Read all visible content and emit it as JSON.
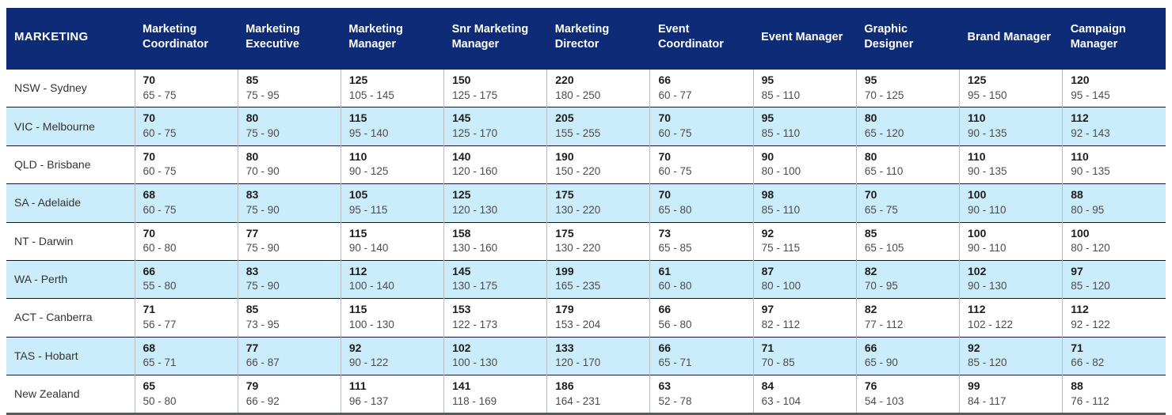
{
  "style": {
    "header_bg": "#0d2b76",
    "header_text": "#ffffff",
    "stripe_bg": "#cbecfa",
    "row_separator": "#15153c",
    "bottom_border": "#595a5c"
  },
  "chart_data": {
    "type": "table",
    "title": "MARKETING",
    "columns": [
      "Marketing Coordinator",
      "Marketing Executive",
      "Marketing Manager",
      "Snr Marketing Manager",
      "Marketing Director",
      "Event Coordinator",
      "Event Manager",
      "Graphic Designer",
      "Brand Manager",
      "Campaign Manager"
    ],
    "rows": [
      {
        "region": "NSW - Sydney",
        "cells": [
          {
            "value": "70",
            "range": "65 - 75"
          },
          {
            "value": "85",
            "range": "75 - 95"
          },
          {
            "value": "125",
            "range": "105 - 145"
          },
          {
            "value": "150",
            "range": "125 - 175"
          },
          {
            "value": "220",
            "range": "180 - 250"
          },
          {
            "value": "66",
            "range": "60 - 77"
          },
          {
            "value": "95",
            "range": "85 - 110"
          },
          {
            "value": "95",
            "range": "70 - 125"
          },
          {
            "value": "125",
            "range": "95 - 150"
          },
          {
            "value": "120",
            "range": "95 - 145"
          }
        ]
      },
      {
        "region": "VIC - Melbourne",
        "cells": [
          {
            "value": "70",
            "range": "60 - 75"
          },
          {
            "value": "80",
            "range": "75 - 90"
          },
          {
            "value": "115",
            "range": "95 - 140"
          },
          {
            "value": "145",
            "range": "125 - 170"
          },
          {
            "value": "205",
            "range": "155 - 255"
          },
          {
            "value": "70",
            "range": "60 - 75"
          },
          {
            "value": "95",
            "range": "85 - 110"
          },
          {
            "value": "80",
            "range": "65 - 120"
          },
          {
            "value": "110",
            "range": "90 - 135"
          },
          {
            "value": "112",
            "range": "92 - 143"
          }
        ]
      },
      {
        "region": "QLD - Brisbane",
        "cells": [
          {
            "value": "70",
            "range": "60 - 75"
          },
          {
            "value": "80",
            "range": "70 - 90"
          },
          {
            "value": "110",
            "range": "90 - 125"
          },
          {
            "value": "140",
            "range": "120 - 160"
          },
          {
            "value": "190",
            "range": "150 - 220"
          },
          {
            "value": "70",
            "range": "60 - 75"
          },
          {
            "value": "90",
            "range": "80 - 100"
          },
          {
            "value": "80",
            "range": "65 - 110"
          },
          {
            "value": "110",
            "range": "90 - 135"
          },
          {
            "value": "110",
            "range": "90 - 135"
          }
        ]
      },
      {
        "region": "SA - Adelaide",
        "cells": [
          {
            "value": "68",
            "range": "60 - 75"
          },
          {
            "value": "83",
            "range": "75 - 90"
          },
          {
            "value": "105",
            "range": "95 - 115"
          },
          {
            "value": "125",
            "range": "120 - 130"
          },
          {
            "value": "175",
            "range": "130 - 220"
          },
          {
            "value": "70",
            "range": "65 - 80"
          },
          {
            "value": "98",
            "range": "85 - 110"
          },
          {
            "value": "70",
            "range": "65 - 75"
          },
          {
            "value": "100",
            "range": "90 - 110"
          },
          {
            "value": "88",
            "range": "80 - 95"
          }
        ]
      },
      {
        "region": "NT - Darwin",
        "cells": [
          {
            "value": "70",
            "range": "60 - 80"
          },
          {
            "value": "77",
            "range": "75 - 90"
          },
          {
            "value": "115",
            "range": "90 - 140"
          },
          {
            "value": "158",
            "range": "130 - 160"
          },
          {
            "value": "175",
            "range": "130 - 220"
          },
          {
            "value": "73",
            "range": "65 - 85"
          },
          {
            "value": "92",
            "range": "75 - 115"
          },
          {
            "value": "85",
            "range": "65 - 105"
          },
          {
            "value": "100",
            "range": "90 - 110"
          },
          {
            "value": "100",
            "range": "80 - 120"
          }
        ]
      },
      {
        "region": "WA - Perth",
        "cells": [
          {
            "value": "66",
            "range": "55 - 80"
          },
          {
            "value": "83",
            "range": "75 - 90"
          },
          {
            "value": "112",
            "range": "100 - 140"
          },
          {
            "value": "145",
            "range": "130 - 175"
          },
          {
            "value": "199",
            "range": "165 - 235"
          },
          {
            "value": "61",
            "range": "60 - 80"
          },
          {
            "value": "87",
            "range": "80 - 100"
          },
          {
            "value": "82",
            "range": "70 - 95"
          },
          {
            "value": "102",
            "range": "90 - 130"
          },
          {
            "value": "97",
            "range": "85 - 120"
          }
        ]
      },
      {
        "region": "ACT - Canberra",
        "cells": [
          {
            "value": "71",
            "range": "56 - 77"
          },
          {
            "value": "85",
            "range": "73 - 95"
          },
          {
            "value": "115",
            "range": "100 - 130"
          },
          {
            "value": "153",
            "range": "122 - 173"
          },
          {
            "value": "179",
            "range": "153 - 204"
          },
          {
            "value": "66",
            "range": "56 - 80"
          },
          {
            "value": "97",
            "range": "82 - 112"
          },
          {
            "value": "82",
            "range": "77 - 112"
          },
          {
            "value": "112",
            "range": "102 - 122"
          },
          {
            "value": "112",
            "range": "92 - 122"
          }
        ]
      },
      {
        "region": "TAS - Hobart",
        "cells": [
          {
            "value": "68",
            "range": "65 - 71"
          },
          {
            "value": "77",
            "range": "66 - 87"
          },
          {
            "value": "92",
            "range": "90 - 122"
          },
          {
            "value": "102",
            "range": "100 - 130"
          },
          {
            "value": "133",
            "range": "120 - 170"
          },
          {
            "value": "66",
            "range": "65 - 71"
          },
          {
            "value": "71",
            "range": "70 - 85"
          },
          {
            "value": "66",
            "range": "65 - 90"
          },
          {
            "value": "92",
            "range": "85 - 120"
          },
          {
            "value": "71",
            "range": "66 - 82"
          }
        ]
      },
      {
        "region": "New Zealand",
        "cells": [
          {
            "value": "65",
            "range": "50 - 80"
          },
          {
            "value": "79",
            "range": "66 - 92"
          },
          {
            "value": "111",
            "range": "96 - 137"
          },
          {
            "value": "141",
            "range": "118 - 169"
          },
          {
            "value": "186",
            "range": "164 - 231"
          },
          {
            "value": "63",
            "range": "52 - 78"
          },
          {
            "value": "84",
            "range": "63 - 104"
          },
          {
            "value": "76",
            "range": "54 - 103"
          },
          {
            "value": "99",
            "range": "84 - 117"
          },
          {
            "value": "88",
            "range": "76 - 112"
          }
        ]
      }
    ]
  }
}
